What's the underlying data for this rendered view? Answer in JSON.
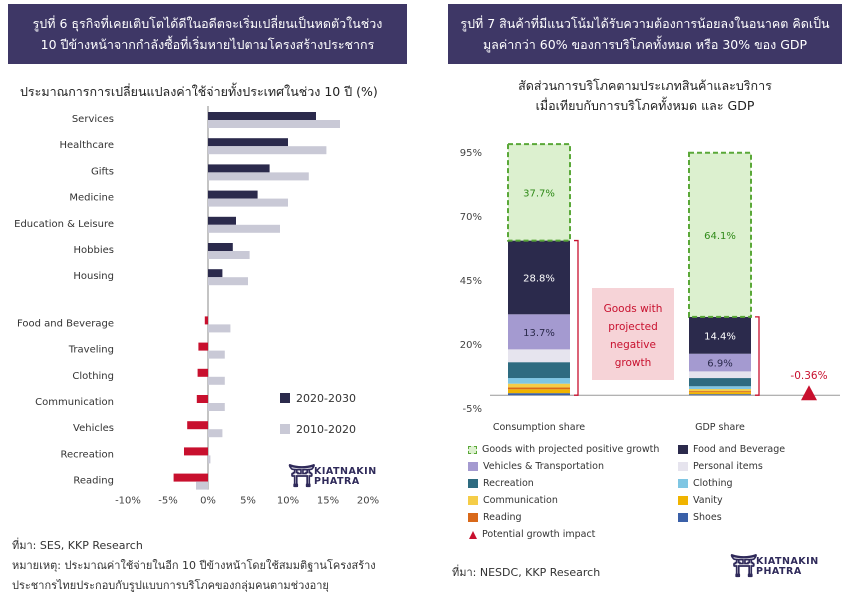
{
  "left": {
    "banner_lines": [
      "รูปที่ 6 ธุรกิจที่เคยเติบโตได้ดีในอดีตจะเริ่มเปลี่ยนเป็นหดตัวในช่วง",
      "10 ปีข้างหน้าจากกำลังซื้อที่เริ่มหายไปตามโครงสร้างประชากร"
    ],
    "source": "ที่มา: SES, KKP Research",
    "note_lines": [
      "หมายเหตุ: ประมาณค่าใช้จ่ายในอีก 10 ปีข้างหน้าโดยใช้สมมติฐานโครงสร้าง",
      "ประชากรไทยประกอบกับรูปแบบการบริโภคของกลุ่มคนตามช่วงอายุ"
    ],
    "logo_line1": "KIATNAKIN",
    "logo_line2": "PHATRA"
  },
  "right": {
    "banner_lines": [
      "รูปที่ 7 สินค้าที่มีแนวโน้มได้รับความต้องการน้อยลงในอนาคต คิดเป็น",
      "มูลค่ากว่า 60% ของการบริโภคทั้งหมด หรือ 30% ของ GDP"
    ],
    "source": "ที่มา: NESDC, KKP Research",
    "logo_line1": "KIATNAKIN",
    "logo_line2": "PHATRA"
  },
  "chart_data": [
    {
      "type": "bar",
      "orientation": "horizontal",
      "title": "ประมาณการการเปลี่ยนแปลงค่าใช้จ่ายทั้งประเทศในช่วง 10 ปี (%)",
      "categories": [
        "Services",
        "Healthcare",
        "Gifts",
        "Medicine",
        "Education & Leisure",
        "Hobbies",
        "Housing",
        "Food and Beverage",
        "Traveling",
        "Clothing",
        "Communication",
        "Vehicles",
        "Recreation",
        "Reading"
      ],
      "series": [
        {
          "name": "2020-2030",
          "color": "#2b2a4c",
          "negative_color": "#c8102e",
          "values": [
            13.5,
            10,
            7.7,
            6.2,
            3.5,
            3.1,
            1.8,
            -0.4,
            -1.2,
            -1.3,
            -1.4,
            -2.6,
            -3.0,
            -4.3
          ]
        },
        {
          "name": "2010-2020",
          "color": "#c9c9d6",
          "values": [
            16.5,
            14.8,
            12.6,
            10.0,
            9.0,
            5.2,
            5.0,
            2.8,
            2.1,
            2.1,
            2.1,
            1.8,
            0.3,
            -1.5
          ]
        }
      ],
      "xlim": [
        -10,
        20
      ],
      "xticks": [
        "-10%",
        "-5%",
        "0%",
        "5%",
        "10%",
        "15%",
        "20%"
      ],
      "legend_position": "bottom-right"
    },
    {
      "type": "bar",
      "stacked": true,
      "title_lines": [
        "สัดส่วนการบริโภคตามประเภทสินค้าและบริการ",
        "เมื่อเทียบกับการบริโภคทั้งหมด และ GDP"
      ],
      "categories": [
        "Consumption share",
        "GDP share"
      ],
      "yticks": [
        "95%",
        "70%",
        "45%",
        "20%",
        "-5%"
      ],
      "ylim": [
        -5,
        95
      ],
      "components": [
        {
          "name": "Shoes",
          "color": "#3a60a8",
          "values": [
            0.8,
            0.4
          ]
        },
        {
          "name": "Vanity",
          "color": "#f0b400",
          "values": [
            1.5,
            0.8
          ]
        },
        {
          "name": "Reading",
          "color": "#d9691a",
          "values": [
            0.7,
            0.4
          ]
        },
        {
          "name": "Communication",
          "color": "#f5cd48",
          "values": [
            1.5,
            0.8
          ]
        },
        {
          "name": "Clothing",
          "color": "#7fc6e3",
          "values": [
            2.2,
            1.1
          ]
        },
        {
          "name": "Recreation",
          "color": "#2e6b80",
          "values": [
            6.2,
            3.2
          ]
        },
        {
          "name": "Personal items",
          "color": "#e6e4ee",
          "values": [
            5.0,
            2.6
          ]
        },
        {
          "name": "Vehicles & Transportation",
          "color": "#a49ad0",
          "values": [
            13.7,
            6.9
          ]
        },
        {
          "name": "Food and Beverage",
          "color": "#2b2a4c",
          "values": [
            28.8,
            14.4
          ]
        },
        {
          "name": "Goods with projected positive growth",
          "color": "#dcf0cf",
          "values": [
            37.7,
            64.1
          ]
        }
      ],
      "data_labels": {
        "Consumption share": {
          "Vehicles & Transportation": "13.7%",
          "Food and Beverage": "28.8%",
          "Goods with projected positive growth": "37.7%"
        },
        "GDP share": {
          "Vehicles & Transportation": "6.9%",
          "Food and Beverage": "14.4%",
          "Goods with projected positive growth": "64.1%"
        }
      },
      "annotation": {
        "text_lines": [
          "Goods with",
          "projected",
          "negative",
          "growth"
        ]
      },
      "potential_growth_impact": {
        "value": -0.36,
        "label": "-0.36%"
      },
      "legend": [
        {
          "name": "Goods with projected positive growth",
          "color": "#dcf0cf",
          "style": "dashed-green"
        },
        {
          "name": "Food and Beverage",
          "color": "#2b2a4c"
        },
        {
          "name": "Vehicles & Transportation",
          "color": "#a49ad0"
        },
        {
          "name": "Personal items",
          "color": "#e6e4ee"
        },
        {
          "name": "Recreation",
          "color": "#2e6b80"
        },
        {
          "name": "Clothing",
          "color": "#7fc6e3"
        },
        {
          "name": "Communication",
          "color": "#f5cd48"
        },
        {
          "name": "Vanity",
          "color": "#f0b400"
        },
        {
          "name": "Reading",
          "color": "#d9691a"
        },
        {
          "name": "Shoes",
          "color": "#3a60a8"
        },
        {
          "name": "Potential growth impact",
          "color": "#c8102e",
          "style": "triangle"
        }
      ]
    }
  ]
}
